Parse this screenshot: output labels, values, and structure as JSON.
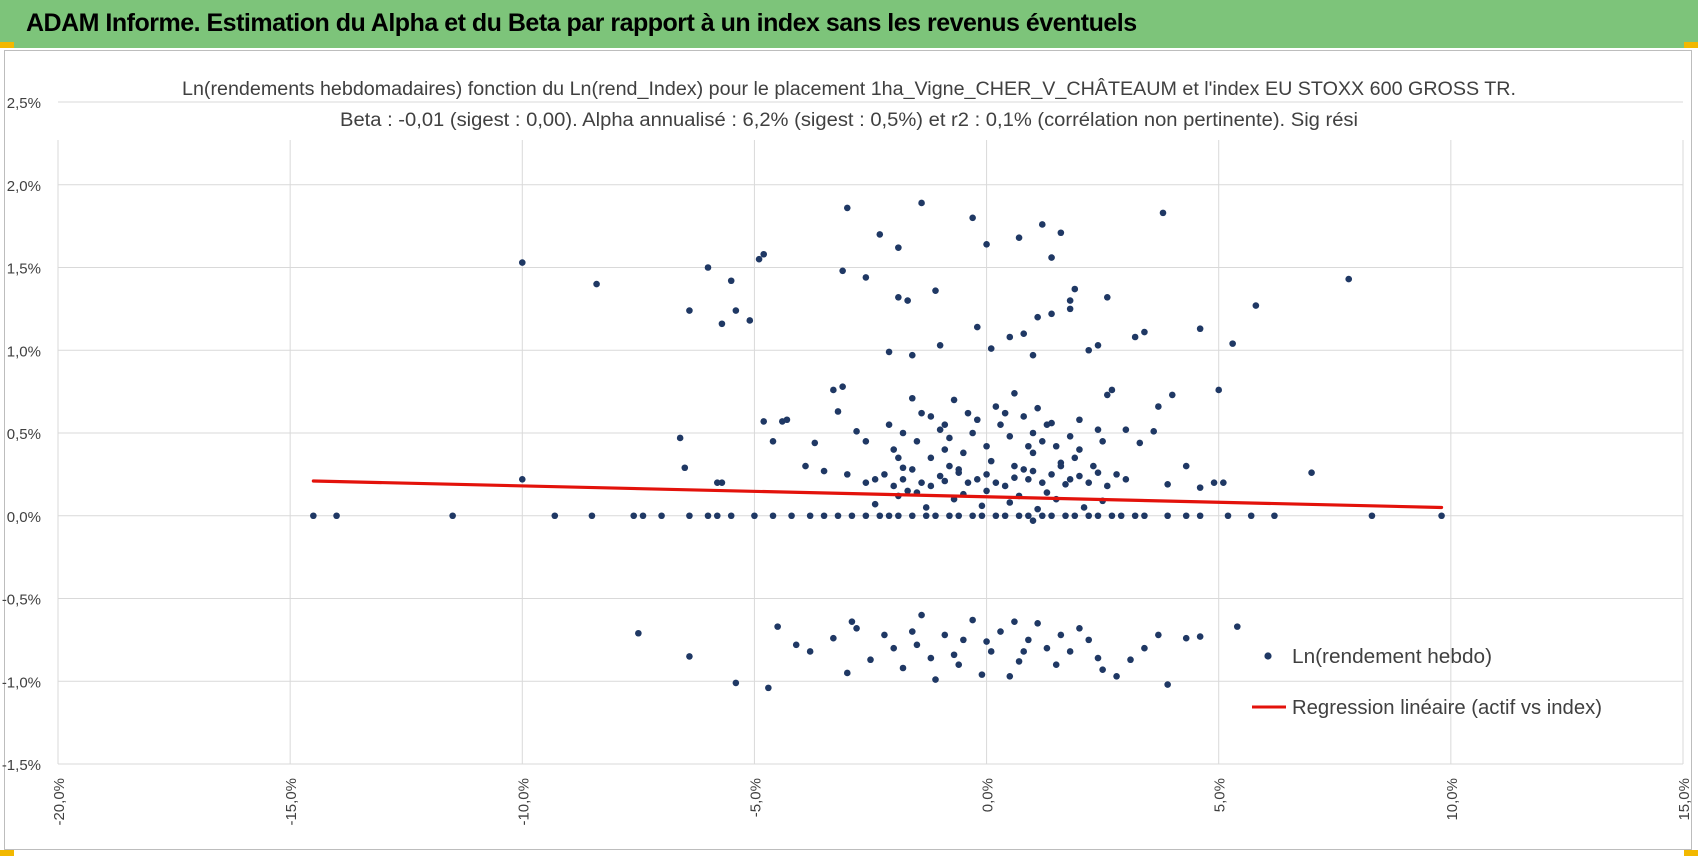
{
  "banner": {
    "title": "ADAM Informe. Estimation du Alpha et du Beta par rapport à un index sans les revenus éventuels"
  },
  "colors": {
    "banner": "#7dc47a",
    "points": "#1f3864",
    "regression": "#e3120b",
    "grid": "#d9d9d9",
    "corner": "#f2b800"
  },
  "chart_data": {
    "type": "scatter",
    "title": "Ln(rendements hebdomadaires) fonction du Ln(rend_Index) pour le placement 1ha_Vigne_CHER_V_CHÂTEAUM et l'index EU STOXX 600 GROSS TR.",
    "subtitle": "Beta : -0,01 (sigest : 0,00). Alpha annualisé : 6,2% (sigest : 0,5%) et r2 : 0,1% (corrélation non pertinente). Sig rési",
    "xlabel": "",
    "ylabel": "",
    "xlim": [
      -20,
      15
    ],
    "ylim": [
      -1.5,
      2.5
    ],
    "x_ticks": [
      "-20,0%",
      "-15,0%",
      "-10,0%",
      "-5,0%",
      "0,0%",
      "5,0%",
      "10,0%",
      "15,0%"
    ],
    "y_ticks": [
      "2,5%",
      "2,0%",
      "1,5%",
      "1,0%",
      "0,5%",
      "0,0%",
      "-0,5%",
      "-1,0%",
      "-1,5%"
    ],
    "grid": true,
    "legend_position": "bottom-right",
    "series": [
      {
        "name": "Ln(rendement hebdo)",
        "kind": "scatter",
        "points": [
          [
            -14.5,
            0.0
          ],
          [
            -14.0,
            0.0
          ],
          [
            -11.5,
            0.0
          ],
          [
            -9.3,
            0.0
          ],
          [
            -8.5,
            0.0
          ],
          [
            -7.6,
            0.0
          ],
          [
            -7.4,
            0.0
          ],
          [
            -7.0,
            0.0
          ],
          [
            -6.4,
            0.0
          ],
          [
            -6.0,
            0.0
          ],
          [
            -5.8,
            0.0
          ],
          [
            -5.5,
            0.0
          ],
          [
            -5.0,
            0.0
          ],
          [
            -4.6,
            0.0
          ],
          [
            -4.2,
            0.0
          ],
          [
            -3.8,
            0.0
          ],
          [
            -3.2,
            0.0
          ],
          [
            -2.6,
            0.0
          ],
          [
            -2.1,
            0.0
          ],
          [
            -1.6,
            0.0
          ],
          [
            -1.1,
            0.0
          ],
          [
            -0.6,
            0.0
          ],
          [
            -0.1,
            0.0
          ],
          [
            0.4,
            0.0
          ],
          [
            0.9,
            0.0
          ],
          [
            1.4,
            0.0
          ],
          [
            1.9,
            0.0
          ],
          [
            2.4,
            0.0
          ],
          [
            2.9,
            0.0
          ],
          [
            3.4,
            0.0
          ],
          [
            3.9,
            0.0
          ],
          [
            4.3,
            0.0
          ],
          [
            4.6,
            0.0
          ],
          [
            5.2,
            0.0
          ],
          [
            5.7,
            0.0
          ],
          [
            6.2,
            0.0
          ],
          [
            8.3,
            0.0
          ],
          [
            9.8,
            0.0
          ],
          [
            -3.5,
            0.0
          ],
          [
            -2.9,
            0.0
          ],
          [
            -2.3,
            0.0
          ],
          [
            -1.9,
            0.0
          ],
          [
            -1.3,
            0.0
          ],
          [
            -0.8,
            0.0
          ],
          [
            -0.3,
            0.0
          ],
          [
            0.2,
            0.0
          ],
          [
            0.7,
            0.0
          ],
          [
            1.2,
            0.0
          ],
          [
            1.7,
            0.0
          ],
          [
            2.2,
            0.0
          ],
          [
            2.7,
            0.0
          ],
          [
            3.2,
            0.0
          ],
          [
            1.0,
            -0.03
          ],
          [
            -10.0,
            1.53
          ],
          [
            -8.4,
            1.4
          ],
          [
            -6.0,
            1.5
          ],
          [
            -5.5,
            1.42
          ],
          [
            -6.4,
            1.24
          ],
          [
            -5.7,
            1.16
          ],
          [
            -5.4,
            1.24
          ],
          [
            -5.1,
            1.18
          ],
          [
            -4.9,
            1.55
          ],
          [
            -4.8,
            1.58
          ],
          [
            -3.0,
            1.86
          ],
          [
            -2.3,
            1.7
          ],
          [
            -1.9,
            1.62
          ],
          [
            -1.4,
            1.89
          ],
          [
            -0.3,
            1.8
          ],
          [
            0.0,
            1.64
          ],
          [
            0.7,
            1.68
          ],
          [
            1.2,
            1.76
          ],
          [
            1.6,
            1.71
          ],
          [
            1.4,
            1.56
          ],
          [
            3.8,
            1.83
          ],
          [
            7.8,
            1.43
          ],
          [
            -3.1,
            1.48
          ],
          [
            -2.6,
            1.44
          ],
          [
            -1.9,
            1.32
          ],
          [
            -1.7,
            1.3
          ],
          [
            -1.1,
            1.36
          ],
          [
            1.9,
            1.37
          ],
          [
            1.8,
            1.3
          ],
          [
            2.6,
            1.32
          ],
          [
            5.8,
            1.27
          ],
          [
            -2.1,
            0.99
          ],
          [
            -1.6,
            0.97
          ],
          [
            -1.0,
            1.03
          ],
          [
            -0.2,
            1.14
          ],
          [
            0.1,
            1.01
          ],
          [
            0.5,
            1.08
          ],
          [
            0.8,
            1.1
          ],
          [
            1.1,
            1.2
          ],
          [
            1.4,
            1.22
          ],
          [
            1.8,
            1.25
          ],
          [
            2.2,
            1.0
          ],
          [
            2.4,
            1.03
          ],
          [
            3.2,
            1.08
          ],
          [
            3.4,
            1.11
          ],
          [
            4.6,
            1.13
          ],
          [
            5.3,
            1.04
          ],
          [
            1.0,
            0.97
          ],
          [
            -6.6,
            0.47
          ],
          [
            -6.5,
            0.29
          ],
          [
            -5.7,
            0.2
          ],
          [
            -4.8,
            0.57
          ],
          [
            -4.4,
            0.57
          ],
          [
            -4.3,
            0.58
          ],
          [
            -4.6,
            0.45
          ],
          [
            -3.7,
            0.44
          ],
          [
            -3.2,
            0.63
          ],
          [
            -3.1,
            0.78
          ],
          [
            -3.3,
            0.76
          ],
          [
            -2.8,
            0.51
          ],
          [
            -2.6,
            0.45
          ],
          [
            -2.1,
            0.55
          ],
          [
            -1.9,
            0.35
          ],
          [
            -1.8,
            0.29
          ],
          [
            -1.6,
            0.71
          ],
          [
            -1.4,
            0.62
          ],
          [
            -1.2,
            0.6
          ],
          [
            -0.9,
            0.55
          ],
          [
            -0.7,
            0.7
          ],
          [
            -0.4,
            0.62
          ],
          [
            0.2,
            0.66
          ],
          [
            0.6,
            0.74
          ],
          [
            1.1,
            0.65
          ],
          [
            1.4,
            0.56
          ],
          [
            2.0,
            0.58
          ],
          [
            2.4,
            0.52
          ],
          [
            2.6,
            0.73
          ],
          [
            2.7,
            0.76
          ],
          [
            3.0,
            0.52
          ],
          [
            3.3,
            0.44
          ],
          [
            3.6,
            0.51
          ],
          [
            3.7,
            0.66
          ],
          [
            4.0,
            0.73
          ],
          [
            5.0,
            0.76
          ],
          [
            -3.9,
            0.3
          ],
          [
            -3.5,
            0.27
          ],
          [
            -3.0,
            0.25
          ],
          [
            -2.4,
            0.22
          ],
          [
            -2.0,
            0.18
          ],
          [
            -1.5,
            0.14
          ],
          [
            4.3,
            0.3
          ],
          [
            4.6,
            0.17
          ],
          [
            4.9,
            0.2
          ],
          [
            5.1,
            0.2
          ],
          [
            7.0,
            0.26
          ],
          [
            -10.0,
            0.22
          ],
          [
            -5.8,
            0.2
          ],
          [
            3.9,
            0.19
          ],
          [
            -1.2,
            0.35
          ],
          [
            -0.5,
            0.38
          ],
          [
            0.0,
            0.42
          ],
          [
            0.5,
            0.48
          ],
          [
            1.0,
            0.5
          ],
          [
            1.5,
            0.42
          ],
          [
            -1.0,
            0.52
          ],
          [
            -0.2,
            0.58
          ],
          [
            0.8,
            0.6
          ],
          [
            1.3,
            0.55
          ],
          [
            1.8,
            0.48
          ],
          [
            -1.5,
            0.45
          ],
          [
            -0.8,
            0.47
          ],
          [
            0.3,
            0.55
          ],
          [
            1.0,
            0.38
          ],
          [
            2.0,
            0.4
          ],
          [
            2.5,
            0.45
          ],
          [
            -2.0,
            0.4
          ],
          [
            -0.6,
            0.28
          ],
          [
            0.6,
            0.3
          ],
          [
            1.6,
            0.32
          ],
          [
            -0.3,
            0.5
          ],
          [
            0.4,
            0.62
          ],
          [
            1.2,
            0.45
          ],
          [
            -1.8,
            0.5
          ],
          [
            0.1,
            0.33
          ],
          [
            -0.9,
            0.4
          ],
          [
            0.9,
            0.42
          ],
          [
            1.9,
            0.35
          ],
          [
            2.3,
            0.3
          ],
          [
            -2.2,
            0.25
          ],
          [
            -1.8,
            0.22
          ],
          [
            -1.4,
            0.2
          ],
          [
            -1.0,
            0.24
          ],
          [
            -0.6,
            0.26
          ],
          [
            -0.2,
            0.22
          ],
          [
            0.2,
            0.2
          ],
          [
            0.6,
            0.23
          ],
          [
            1.0,
            0.27
          ],
          [
            1.4,
            0.25
          ],
          [
            1.8,
            0.22
          ],
          [
            2.2,
            0.2
          ],
          [
            2.6,
            0.18
          ],
          [
            3.0,
            0.22
          ],
          [
            -1.6,
            0.28
          ],
          [
            -0.8,
            0.3
          ],
          [
            0.0,
            0.25
          ],
          [
            0.8,
            0.28
          ],
          [
            1.6,
            0.3
          ],
          [
            2.4,
            0.26
          ],
          [
            -1.2,
            0.18
          ],
          [
            -0.4,
            0.2
          ],
          [
            0.4,
            0.18
          ],
          [
            1.2,
            0.2
          ],
          [
            2.0,
            0.24
          ],
          [
            -2.6,
            0.2
          ],
          [
            2.8,
            0.25
          ],
          [
            -0.9,
            0.21
          ],
          [
            0.9,
            0.22
          ],
          [
            1.7,
            0.19
          ],
          [
            -1.9,
            0.12
          ],
          [
            -0.7,
            0.1
          ],
          [
            0.5,
            0.08
          ],
          [
            1.5,
            0.1
          ],
          [
            2.5,
            0.09
          ],
          [
            -1.3,
            0.05
          ],
          [
            -0.1,
            0.06
          ],
          [
            1.1,
            0.04
          ],
          [
            2.1,
            0.05
          ],
          [
            -2.4,
            0.07
          ],
          [
            0.0,
            0.15
          ],
          [
            0.7,
            0.12
          ],
          [
            1.3,
            0.14
          ],
          [
            -0.5,
            0.13
          ],
          [
            -1.7,
            0.15
          ],
          [
            -7.5,
            -0.71
          ],
          [
            -6.4,
            -0.85
          ],
          [
            -5.4,
            -1.01
          ],
          [
            -4.7,
            -1.04
          ],
          [
            -4.5,
            -0.67
          ],
          [
            -4.1,
            -0.78
          ],
          [
            -3.8,
            -0.82
          ],
          [
            -3.3,
            -0.74
          ],
          [
            -3.0,
            -0.95
          ],
          [
            -2.8,
            -0.68
          ],
          [
            -2.5,
            -0.87
          ],
          [
            -2.2,
            -0.72
          ],
          [
            -2.0,
            -0.8
          ],
          [
            -1.8,
            -0.92
          ],
          [
            -1.6,
            -0.7
          ],
          [
            -1.4,
            -0.6
          ],
          [
            -1.2,
            -0.86
          ],
          [
            -1.1,
            -0.99
          ],
          [
            -0.9,
            -0.72
          ],
          [
            -0.7,
            -0.84
          ],
          [
            -0.5,
            -0.75
          ],
          [
            -0.3,
            -0.63
          ],
          [
            -0.1,
            -0.96
          ],
          [
            0.1,
            -0.82
          ],
          [
            0.3,
            -0.7
          ],
          [
            0.5,
            -0.97
          ],
          [
            0.7,
            -0.88
          ],
          [
            0.9,
            -0.75
          ],
          [
            1.1,
            -0.65
          ],
          [
            1.3,
            -0.8
          ],
          [
            1.6,
            -0.72
          ],
          [
            1.8,
            -0.82
          ],
          [
            2.0,
            -0.68
          ],
          [
            2.2,
            -0.75
          ],
          [
            2.5,
            -0.93
          ],
          [
            2.8,
            -0.97
          ],
          [
            3.1,
            -0.87
          ],
          [
            3.4,
            -0.8
          ],
          [
            3.7,
            -0.72
          ],
          [
            3.9,
            -1.02
          ],
          [
            4.3,
            -0.74
          ],
          [
            4.6,
            -0.73
          ],
          [
            5.4,
            -0.67
          ],
          [
            -2.9,
            -0.64
          ],
          [
            0.6,
            -0.64
          ],
          [
            1.5,
            -0.9
          ],
          [
            -1.5,
            -0.78
          ],
          [
            2.4,
            -0.86
          ],
          [
            0.0,
            -0.76
          ],
          [
            0.8,
            -0.82
          ],
          [
            -0.6,
            -0.9
          ]
        ]
      },
      {
        "name": "Regression linéaire (actif vs index)",
        "kind": "line",
        "points": [
          [
            -14.5,
            0.21
          ],
          [
            9.8,
            0.05
          ]
        ]
      }
    ]
  }
}
